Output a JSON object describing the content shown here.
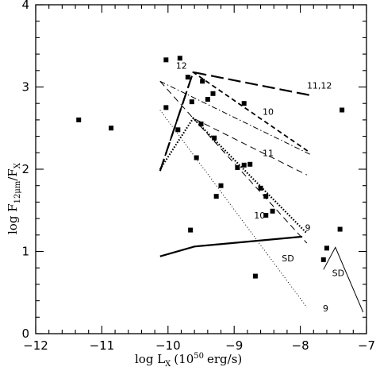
{
  "chart_data": {
    "type": "scatter",
    "title": "",
    "xlabel": "log L",
    "xlabel_sub": "X",
    "xlabel_units": "(10",
    "xlabel_sup": "50",
    "xlabel_tail": "erg/s)",
    "ylabel": "log F",
    "ylabel_sub1": "12μm",
    "ylabel_mid": "/F",
    "ylabel_sub2": "X",
    "xlim": [
      -12,
      -7
    ],
    "ylim": [
      0,
      4
    ],
    "xticks": [
      -12,
      -11,
      -10,
      -9,
      -8,
      -7
    ],
    "yticks": [
      0,
      1,
      2,
      3,
      4
    ],
    "xtick_labels": [
      "−12",
      "−11",
      "−10",
      "−9",
      "−8",
      "−7"
    ],
    "ytick_labels": [
      "0",
      "1",
      "2",
      "3",
      "4"
    ],
    "grid": false,
    "points": [
      {
        "x": -11.35,
        "y": 2.6
      },
      {
        "x": -10.86,
        "y": 2.5
      },
      {
        "x": -10.03,
        "y": 3.33
      },
      {
        "x": -9.82,
        "y": 3.35
      },
      {
        "x": -9.7,
        "y": 3.12
      },
      {
        "x": -9.64,
        "y": 2.82
      },
      {
        "x": -9.48,
        "y": 3.07
      },
      {
        "x": -9.4,
        "y": 2.85
      },
      {
        "x": -9.32,
        "y": 2.92
      },
      {
        "x": -8.85,
        "y": 2.8
      },
      {
        "x": -10.03,
        "y": 2.75
      },
      {
        "x": -9.85,
        "y": 2.48
      },
      {
        "x": -9.5,
        "y": 2.55
      },
      {
        "x": -9.3,
        "y": 2.38
      },
      {
        "x": -9.57,
        "y": 2.14
      },
      {
        "x": -8.95,
        "y": 2.02
      },
      {
        "x": -8.85,
        "y": 2.05
      },
      {
        "x": -8.76,
        "y": 2.06
      },
      {
        "x": -9.2,
        "y": 1.8
      },
      {
        "x": -9.27,
        "y": 1.67
      },
      {
        "x": -8.6,
        "y": 1.77
      },
      {
        "x": -8.52,
        "y": 1.67
      },
      {
        "x": -8.42,
        "y": 1.49
      },
      {
        "x": -8.52,
        "y": 1.44
      },
      {
        "x": -9.66,
        "y": 1.26
      },
      {
        "x": -8.68,
        "y": 0.7
      },
      {
        "x": -7.6,
        "y": 1.04
      },
      {
        "x": -7.65,
        "y": 0.9
      },
      {
        "x": -7.4,
        "y": 1.27
      },
      {
        "x": -7.37,
        "y": 2.72
      }
    ],
    "lines": [
      {
        "style": "longdash",
        "width": 2.2,
        "x": [
          -10.12,
          -9.62,
          -7.85
        ],
        "y": [
          1.98,
          3.18,
          2.9
        ]
      },
      {
        "style": "shortdash",
        "width": 1.8,
        "x": [
          -10.12,
          -9.62,
          -7.85
        ],
        "y": [
          1.98,
          3.18,
          2.2
        ]
      },
      {
        "style": "dashdot",
        "width": 1.0,
        "x": [
          -10.12,
          -7.85
        ],
        "y": [
          3.07,
          2.18
        ]
      },
      {
        "style": "dashed",
        "width": 1.0,
        "x": [
          -10.12,
          -9.62,
          -7.9
        ],
        "y": [
          3.07,
          2.62,
          1.93
        ]
      },
      {
        "style": "densedot",
        "width": 2.2,
        "x": [
          -10.12,
          -9.62,
          -7.9
        ],
        "y": [
          2.0,
          2.62,
          1.22
        ]
      },
      {
        "style": "dashed",
        "width": 1.0,
        "x": [
          -9.62,
          -7.9
        ],
        "y": [
          2.62,
          1.1
        ]
      },
      {
        "style": "dotted",
        "width": 1.0,
        "x": [
          -10.12,
          -7.9
        ],
        "y": [
          2.72,
          0.32
        ]
      },
      {
        "style": "solid",
        "width": 2.2,
        "x": [
          -10.12,
          -9.6,
          -7.97
        ],
        "y": [
          0.94,
          1.06,
          1.18
        ]
      },
      {
        "style": "solid",
        "width": 1.0,
        "x": [
          -7.65,
          -7.47,
          -7.05
        ],
        "y": [
          0.78,
          1.05,
          0.26
        ]
      }
    ],
    "annotations": [
      {
        "text": "12",
        "x": -9.88,
        "y": 3.22
      },
      {
        "text": "11,12",
        "x": -7.9,
        "y": 2.98
      },
      {
        "text": "10",
        "x": -8.57,
        "y": 2.66
      },
      {
        "text": "11",
        "x": -8.57,
        "y": 2.16
      },
      {
        "text": "10",
        "x": -8.7,
        "y": 1.4
      },
      {
        "text": "9",
        "x": -7.93,
        "y": 1.25
      },
      {
        "text": "SD",
        "x": -8.28,
        "y": 0.88
      },
      {
        "text": "SD",
        "x": -7.52,
        "y": 0.7
      },
      {
        "text": "9",
        "x": -7.66,
        "y": 0.27
      }
    ]
  }
}
